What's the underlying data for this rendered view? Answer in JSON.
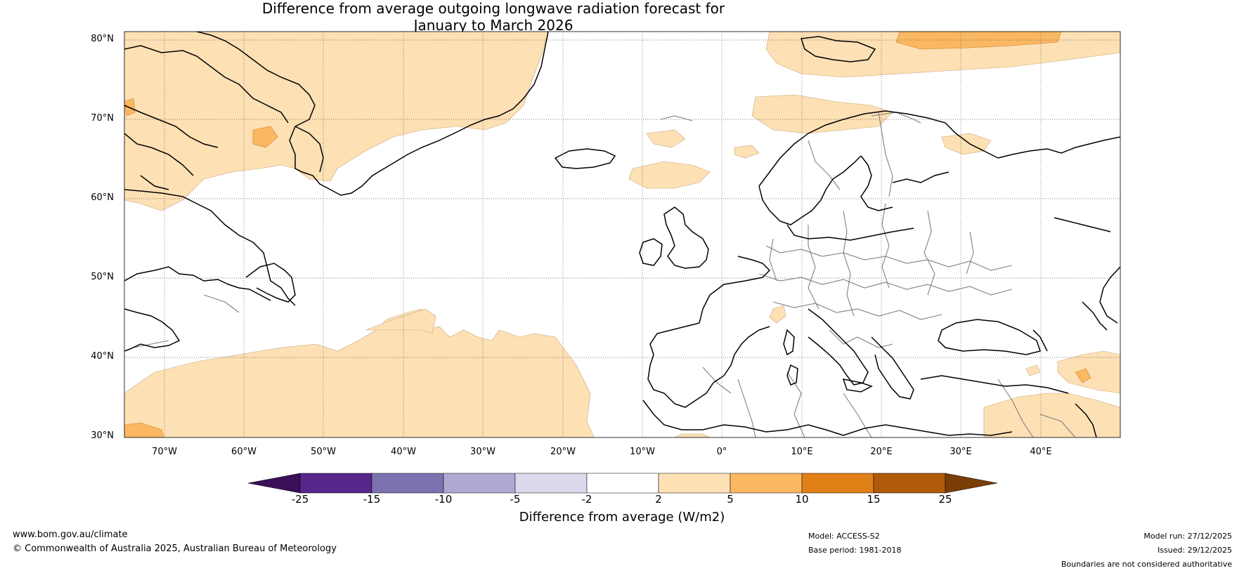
{
  "title": {
    "line1": "Difference from average outgoing longwave radiation forecast for",
    "line2": "January to March 2026"
  },
  "map": {
    "lat_labels": [
      "80°N",
      "70°N",
      "60°N",
      "50°N",
      "40°N",
      "30°N"
    ],
    "lon_labels": [
      "70°W",
      "60°W",
      "50°W",
      "40°W",
      "30°W",
      "20°W",
      "10°W",
      "0°",
      "10°E",
      "20°E",
      "30°E",
      "40°E"
    ],
    "colors": {
      "bin_2_5": "#fde0b4",
      "bin_5_10": "#fbb862",
      "coast": "#000000",
      "border": "#808080",
      "grid": "#555555"
    }
  },
  "colorbar": {
    "ticks": [
      "-25",
      "-15",
      "-10",
      "-5",
      "-2",
      "2",
      "5",
      "10",
      "15",
      "25"
    ],
    "colors": [
      "#3b0f57",
      "#56268a",
      "#7d72b0",
      "#b0a8d3",
      "#dbd9ec",
      "#ffffff",
      "#fde0b4",
      "#fbb862",
      "#e07f16",
      "#b05a0a",
      "#7a3d06"
    ],
    "label": "Difference from average (W/m2)"
  },
  "footer": {
    "website": "www.bom.gov.au/climate",
    "copyright": "© Commonwealth of Australia 2025, Australian Bureau of Meteorology",
    "model": "Model: ACCESS-S2",
    "base_period": "Base period: 1981-2018",
    "model_run": "Model run: 27/12/2025",
    "issued": "Issued: 29/12/2025",
    "boundaries": "Boundaries are not considered authoritative"
  }
}
